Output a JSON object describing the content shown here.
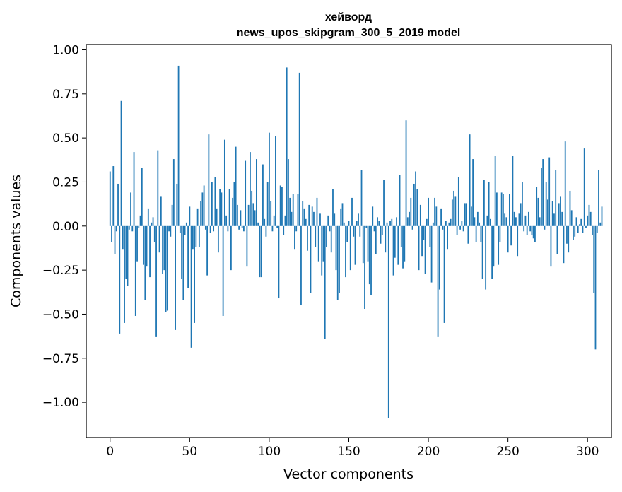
{
  "chart_data": {
    "type": "bar",
    "title_line1": "хейворд",
    "title_line2": "news_upos_skipgram_300_5_2019 model",
    "xlabel": "Vector components",
    "ylabel": "Components values",
    "xlim": [
      -15,
      315
    ],
    "ylim": [
      -1.2,
      1.03
    ],
    "xticks": [
      0,
      50,
      100,
      150,
      200,
      250,
      300
    ],
    "xtick_labels": [
      "0",
      "50",
      "100",
      "150",
      "200",
      "250",
      "300"
    ],
    "yticks": [
      1.0,
      0.75,
      0.5,
      0.25,
      0.0,
      -0.25,
      -0.5,
      -0.75,
      -1.0
    ],
    "ytick_labels": [
      "1.00",
      "0.75",
      "0.50",
      "0.25",
      "0.00",
      "−0.25",
      "−0.50",
      "−0.75",
      "−1.00"
    ],
    "bar_color": "#1f77b4",
    "values": [
      0.31,
      -0.09,
      0.34,
      -0.16,
      -0.03,
      0.24,
      -0.61,
      0.71,
      -0.13,
      -0.55,
      -0.3,
      -0.34,
      -0.02,
      0.19,
      -0.03,
      0.42,
      -0.51,
      -0.2,
      -0.01,
      0.06,
      0.33,
      -0.22,
      -0.42,
      -0.23,
      0.1,
      -0.29,
      0.02,
      0.05,
      -0.09,
      -0.63,
      0.43,
      -0.15,
      0.17,
      -0.27,
      -0.25,
      -0.49,
      -0.48,
      -0.03,
      -0.06,
      0.12,
      0.38,
      -0.59,
      0.24,
      0.91,
      -0.04,
      -0.3,
      -0.42,
      -0.05,
      0.02,
      -0.35,
      0.11,
      -0.69,
      -0.13,
      -0.55,
      -0.12,
      0.1,
      -0.12,
      0.14,
      0.19,
      0.23,
      -0.02,
      -0.28,
      0.52,
      -0.04,
      0.25,
      -0.03,
      0.28,
      0.1,
      -0.15,
      0.21,
      0.19,
      -0.51,
      0.49,
      0.06,
      -0.03,
      0.21,
      -0.25,
      0.16,
      0.25,
      0.45,
      0.12,
      -0.02,
      0.09,
      -0.01,
      -0.03,
      0.37,
      -0.23,
      0.12,
      0.42,
      0.2,
      0.13,
      0.09,
      0.38,
      0.02,
      -0.29,
      -0.29,
      0.35,
      0.04,
      -0.06,
      0.25,
      0.53,
      0.14,
      -0.03,
      0.06,
      0.51,
      -0.01,
      -0.41,
      0.23,
      0.22,
      -0.05,
      0.06,
      0.9,
      0.38,
      0.16,
      0.08,
      0.18,
      -0.13,
      -0.03,
      0.18,
      0.87,
      -0.45,
      0.14,
      0.1,
      0.04,
      -0.14,
      0.12,
      -0.38,
      0.11,
      0.08,
      -0.12,
      0.16,
      -0.2,
      0.07,
      -0.28,
      -0.2,
      -0.64,
      -0.12,
      0.06,
      -0.03,
      -0.15,
      0.21,
      0.07,
      -0.25,
      -0.42,
      -0.38,
      0.1,
      0.13,
      0.02,
      -0.29,
      -0.09,
      0.03,
      -0.25,
      0.16,
      -0.06,
      -0.22,
      0.03,
      0.07,
      -0.06,
      0.32,
      -0.21,
      -0.47,
      -0.01,
      -0.2,
      -0.33,
      -0.39,
      0.11,
      -0.03,
      -0.16,
      0.05,
      0.03,
      -0.1,
      -0.05,
      0.26,
      -0.15,
      0.02,
      -1.09,
      0.03,
      0.04,
      -0.28,
      -0.18,
      0.05,
      -0.22,
      0.29,
      -0.12,
      -0.24,
      -0.2,
      0.6,
      0.05,
      0.08,
      0.16,
      -0.02,
      0.24,
      0.31,
      0.21,
      -0.25,
      0.12,
      -0.17,
      -0.08,
      -0.27,
      0.04,
      0.16,
      -0.12,
      -0.32,
      0.02,
      0.16,
      0.11,
      -0.63,
      -0.36,
      0.1,
      -0.02,
      -0.55,
      0.03,
      -0.13,
      0.02,
      0.04,
      0.15,
      0.2,
      0.17,
      -0.05,
      0.28,
      -0.02,
      0.03,
      -0.03,
      0.13,
      0.13,
      -0.1,
      0.52,
      0.11,
      0.38,
      0.05,
      -0.09,
      0.08,
      0.02,
      -0.09,
      -0.3,
      0.26,
      -0.36,
      0.06,
      0.25,
      0.04,
      -0.3,
      -0.23,
      0.4,
      0.19,
      -0.22,
      -0.09,
      0.19,
      0.18,
      0.07,
      0.05,
      -0.15,
      0.18,
      -0.11,
      0.4,
      0.08,
      0.05,
      -0.17,
      0.07,
      0.13,
      0.25,
      -0.03,
      0.06,
      -0.05,
      0.08,
      -0.03,
      -0.05,
      -0.07,
      -0.09,
      0.22,
      0.16,
      0.05,
      0.33,
      0.38,
      -0.02,
      0.25,
      0.15,
      0.39,
      -0.23,
      0.14,
      0.07,
      0.32,
      -0.16,
      0.13,
      0.17,
      0.08,
      -0.21,
      0.48,
      -0.1,
      -0.15,
      0.2,
      0.09,
      -0.08,
      -0.06,
      0.05,
      -0.04,
      0.01,
      0.04,
      -0.04,
      0.44,
      -0.01,
      0.06,
      0.12,
      0.08,
      -0.05,
      -0.38,
      -0.7,
      -0.04,
      0.32,
      0.02,
      0.11
    ]
  }
}
